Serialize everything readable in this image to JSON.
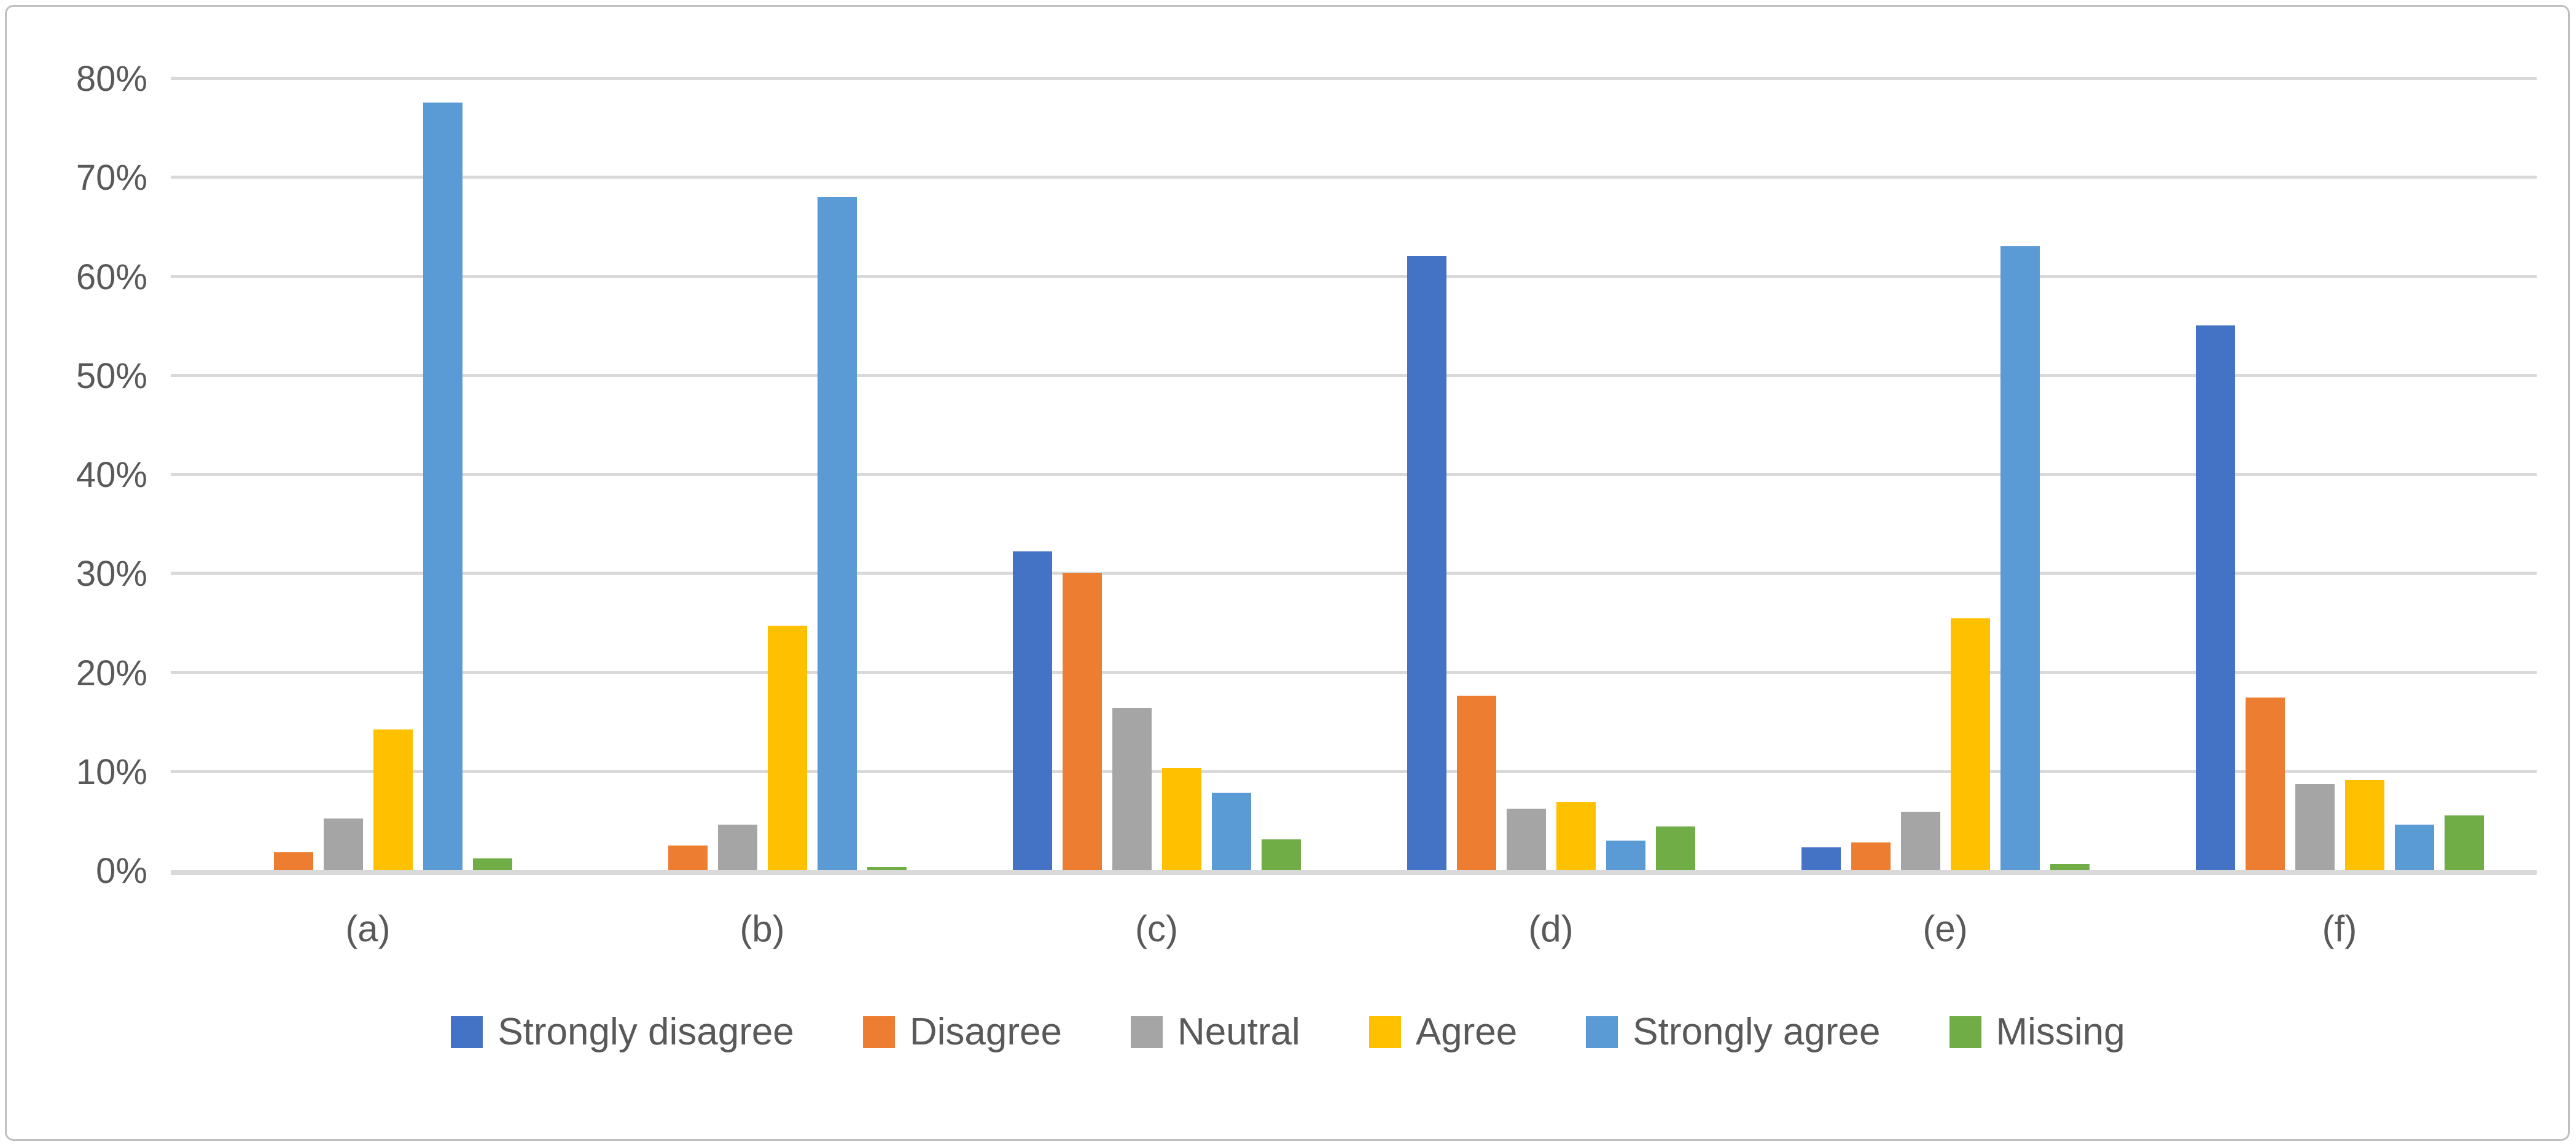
{
  "chart_data": {
    "type": "bar",
    "title": "",
    "categories": [
      "(a)",
      "(b)",
      "(c)",
      "(d)",
      "(e)",
      "(f)"
    ],
    "series": [
      {
        "name": "Strongly disagree",
        "color": "#4472C4",
        "values": [
          0,
          0,
          32.2,
          62,
          2.3,
          55
        ]
      },
      {
        "name": "Disagree",
        "color": "#ED7D31",
        "values": [
          1.8,
          2.5,
          30,
          17.6,
          2.8,
          17.4
        ]
      },
      {
        "name": "Neutral",
        "color": "#A5A5A5",
        "values": [
          5.2,
          4.6,
          16.4,
          6.2,
          5.9,
          8.7
        ]
      },
      {
        "name": "Agree",
        "color": "#FFC000",
        "values": [
          14.2,
          24.7,
          10.3,
          6.9,
          25.4,
          9.1
        ]
      },
      {
        "name": "Strongly agree",
        "color": "#5B9BD5",
        "values": [
          77.5,
          68,
          7.8,
          3,
          63,
          4.6
        ]
      },
      {
        "name": "Missing",
        "color": "#70AD47",
        "values": [
          1.2,
          0.3,
          3.1,
          4.4,
          0.6,
          5.5
        ]
      }
    ],
    "y_axis": {
      "unit": "percent",
      "min": 0,
      "max": 80,
      "ticks": [
        {
          "label": "0%",
          "value": 0
        },
        {
          "label": "10%",
          "value": 10
        },
        {
          "label": "20%",
          "value": 20
        },
        {
          "label": "30%",
          "value": 30
        },
        {
          "label": "40%",
          "value": 40
        },
        {
          "label": "50%",
          "value": 50
        },
        {
          "label": "60%",
          "value": 60
        },
        {
          "label": "70%",
          "value": 70
        },
        {
          "label": "80%",
          "value": 80
        }
      ],
      "gridlines": true
    },
    "xlabel": "",
    "ylabel": "",
    "legend_position": "bottom"
  },
  "style_colors": {
    "gridline": "#D9D9D9",
    "axis_text": "#595959",
    "frame_border": "#BFBFBF",
    "background": "#FFFFFF"
  }
}
